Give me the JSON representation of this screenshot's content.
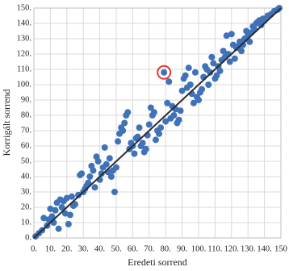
{
  "chart_data": {
    "type": "scatter",
    "x_label": "Eredeti sorrend",
    "y_label": "Korrigált sorrend",
    "xlim": [
      0,
      150
    ],
    "ylim": [
      0,
      150
    ],
    "xticks": [
      {
        "value": 0,
        "label": "0."
      },
      {
        "value": 10,
        "label": "10."
      },
      {
        "value": 20,
        "label": "20."
      },
      {
        "value": 30,
        "label": "30."
      },
      {
        "value": 40,
        "label": "40."
      },
      {
        "value": 50,
        "label": "50."
      },
      {
        "value": 60,
        "label": "60."
      },
      {
        "value": 70,
        "label": "70."
      },
      {
        "value": 80,
        "label": "80."
      },
      {
        "value": 90,
        "label": "90."
      },
      {
        "value": 100,
        "label": "100."
      },
      {
        "value": 110,
        "label": "110."
      },
      {
        "value": 120,
        "label": "120."
      },
      {
        "value": 130,
        "label": "130."
      },
      {
        "value": 140,
        "label": "140."
      },
      {
        "value": 150,
        "label": "150"
      }
    ],
    "yticks": [
      {
        "value": 0,
        "label": "0."
      },
      {
        "value": 10,
        "label": "10."
      },
      {
        "value": 20,
        "label": "20."
      },
      {
        "value": 30,
        "label": "30."
      },
      {
        "value": 40,
        "label": "40."
      },
      {
        "value": 50,
        "label": "50."
      },
      {
        "value": 60,
        "label": "60."
      },
      {
        "value": 70,
        "label": "70."
      },
      {
        "value": 80,
        "label": "80."
      },
      {
        "value": 90,
        "label": "90."
      },
      {
        "value": 100,
        "label": "100."
      },
      {
        "value": 110,
        "label": "110."
      },
      {
        "value": 120,
        "label": "120."
      },
      {
        "value": 130,
        "label": "130."
      },
      {
        "value": 140,
        "label": "140."
      },
      {
        "value": 150,
        "label": "150."
      }
    ],
    "grid": true,
    "diagonal": true,
    "series": [
      {
        "color": "#3f72b8",
        "x": [
          1,
          3,
          5,
          6,
          8,
          9,
          10,
          11,
          12,
          13,
          14,
          15,
          16,
          17,
          18,
          19,
          20,
          21,
          22,
          23,
          24,
          25,
          27,
          28,
          29,
          30,
          31,
          32,
          33,
          34,
          35,
          36,
          37,
          38,
          39,
          40,
          41,
          42,
          43,
          44,
          45,
          46,
          47,
          48,
          49,
          50,
          51,
          52,
          53,
          54,
          55,
          56,
          57,
          58,
          59,
          60,
          61,
          62,
          63,
          64,
          65,
          66,
          67,
          68,
          69,
          70,
          71,
          72,
          73,
          74,
          75,
          76,
          77,
          80,
          81,
          82,
          83,
          84,
          85,
          86,
          87,
          88,
          89,
          90,
          91,
          92,
          93,
          94,
          95,
          96,
          97,
          98,
          99,
          100,
          101,
          102,
          103,
          104,
          105,
          106,
          107,
          108,
          109,
          110,
          111,
          112,
          113,
          114,
          115,
          116,
          117,
          118,
          119,
          120,
          121,
          122,
          123,
          124,
          125,
          126,
          127,
          128,
          129,
          130,
          131,
          132,
          133,
          134,
          135,
          136,
          137,
          138,
          139,
          140,
          142,
          144,
          146,
          148,
          149
        ],
        "y": [
          1,
          3,
          5,
          13,
          8,
          12,
          19,
          14,
          10,
          18,
          23,
          6,
          25,
          20,
          24,
          16,
          26,
          9,
          15,
          27,
          21,
          22,
          28,
          41,
          42,
          30,
          32,
          34,
          36,
          40,
          47,
          44,
          33,
          53,
          50,
          38,
          42,
          46,
          59,
          48,
          43,
          52,
          40,
          44,
          30,
          46,
          63,
          68,
          72,
          70,
          75,
          80,
          82,
          58,
          62,
          60,
          55,
          65,
          66,
          72,
          60,
          62,
          56,
          58,
          67,
          74,
          85,
          80,
          82,
          64,
          70,
          68,
          72,
          76,
          88,
          102,
          78,
          86,
          80,
          84,
          75,
          77,
          83,
          96,
          104,
          106,
          98,
          111,
          100,
          94,
          88,
          108,
          92,
          90,
          95,
          97,
          105,
          112,
          110,
          100,
          108,
          118,
          114,
          104,
          106,
          112,
          109,
          116,
          122,
          118,
          132,
          120,
          115,
          133,
          126,
          117,
          124,
          125,
          128,
          122,
          126,
          130,
          135,
          132,
          128,
          134,
          138,
          136,
          140,
          141,
          142,
          139,
          143,
          142,
          145,
          146,
          148,
          149,
          150
        ]
      },
      {
        "color": "#3f72b8",
        "marker": "ring",
        "ring_color": "#e23b2e",
        "x": [
          79
        ],
        "y": [
          108
        ]
      }
    ]
  }
}
